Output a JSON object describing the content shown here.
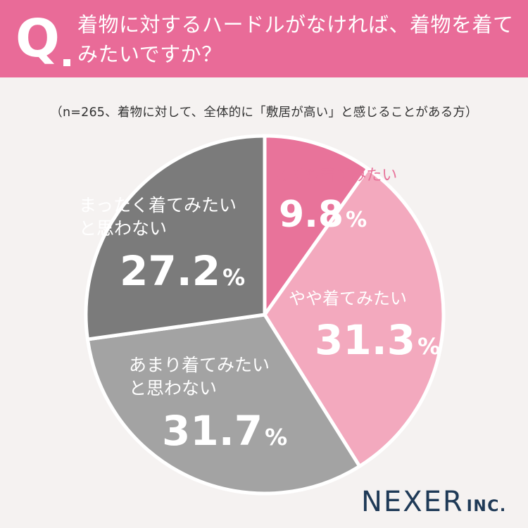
{
  "header": {
    "q_mark": "Q",
    "question": "着物に対するハードルがなければ、着物を着てみたいですか？"
  },
  "note": "（n=265、着物に対して、全体的に「敷居が高い」と感じることがある方）",
  "brand": {
    "name": "NEXER",
    "suffix": "INC."
  },
  "colors": {
    "header": "#e96b98"
  },
  "chart_data": {
    "type": "pie",
    "title": "",
    "start": "12 o'clock, clockwise",
    "slices": [
      {
        "label": "とても着てみたい",
        "value": 9.8,
        "value_text": "9.8",
        "unit": "%",
        "color": "#e8739a"
      },
      {
        "label": "やや着てみたい",
        "value": 31.3,
        "value_text": "31.3",
        "unit": "%",
        "color": "#f3a9be"
      },
      {
        "label": "あまり着てみたいと思わない",
        "value": 31.7,
        "value_text": "31.7",
        "unit": "%",
        "color": "#a3a3a3"
      },
      {
        "label": "まったく着てみたいと思わない",
        "value": 27.2,
        "value_text": "27.2",
        "unit": "%",
        "color": "#7b7b7b"
      }
    ]
  }
}
